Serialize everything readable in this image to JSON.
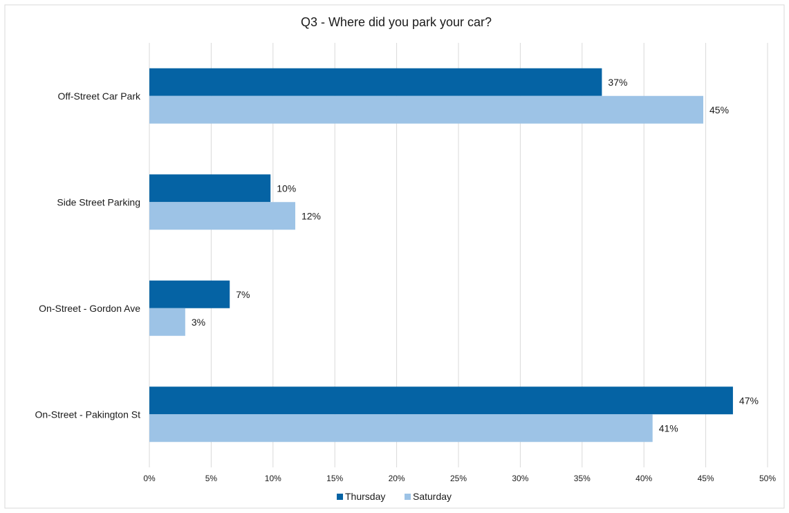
{
  "chart_data": {
    "type": "bar",
    "orientation": "horizontal",
    "title": "Q3 - Where did you park your car?",
    "categories": [
      "Off-Street Car Park",
      "Side Street Parking",
      "On-Street - Gordon Ave",
      "On-Street - Pakington St"
    ],
    "series": [
      {
        "name": "Thursday",
        "color": "#0563a4",
        "values": [
          36.6,
          9.8,
          6.5,
          47.2
        ],
        "labels": [
          "37%",
          "10%",
          "7%",
          "47%"
        ]
      },
      {
        "name": "Saturday",
        "color": "#9dc3e6",
        "values": [
          44.8,
          11.8,
          2.9,
          40.7
        ],
        "labels": [
          "45%",
          "12%",
          "3%",
          "41%"
        ]
      }
    ],
    "xlim": [
      0,
      50
    ],
    "xticks": [
      "0%",
      "5%",
      "10%",
      "15%",
      "20%",
      "25%",
      "30%",
      "35%",
      "40%",
      "45%",
      "50%"
    ],
    "grid": true,
    "legend_position": "bottom"
  }
}
